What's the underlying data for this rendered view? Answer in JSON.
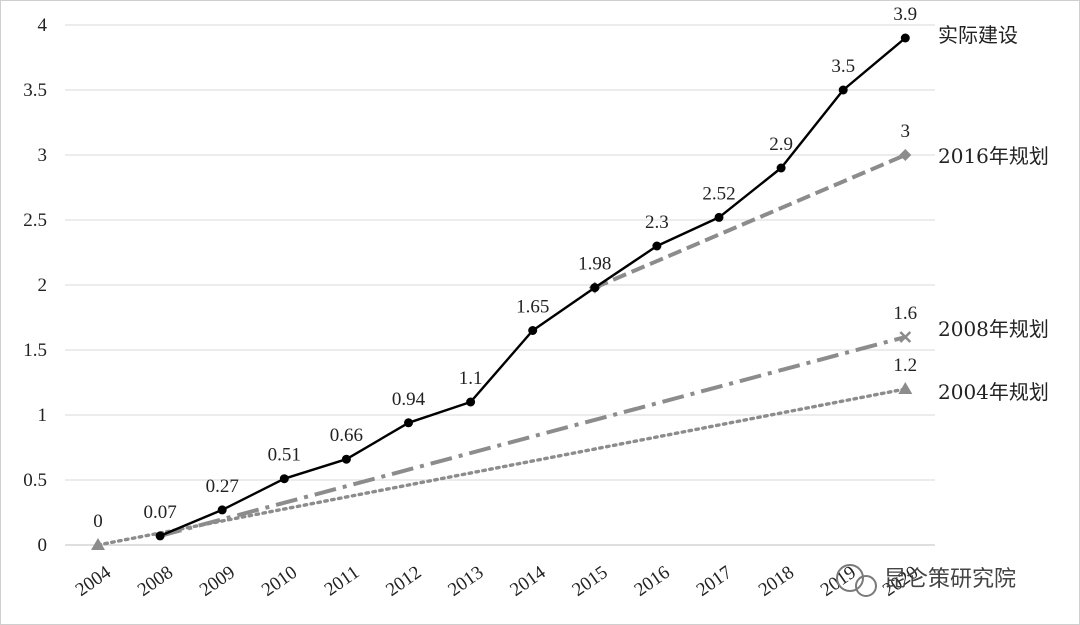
{
  "chart_data": {
    "type": "line",
    "categories": [
      "2004",
      "2008",
      "2009",
      "2010",
      "2011",
      "2012",
      "2013",
      "2014",
      "2015",
      "2016",
      "2017",
      "2018",
      "2019",
      "2020"
    ],
    "ylim": [
      0,
      4
    ],
    "yticks": [
      "0",
      "0.5",
      "1",
      "1.5",
      "2",
      "2.5",
      "3",
      "3.5",
      "4"
    ],
    "grid": true,
    "series": [
      {
        "name": "实际建设",
        "color": "#000000",
        "style": "solid",
        "marker": "circle",
        "points": [
          [
            1,
            0.07
          ],
          [
            2,
            0.27
          ],
          [
            3,
            0.51
          ],
          [
            4,
            0.66
          ],
          [
            5,
            0.94
          ],
          [
            6,
            1.1
          ],
          [
            7,
            1.65
          ],
          [
            8,
            1.98
          ],
          [
            9,
            2.3
          ],
          [
            10,
            2.52
          ],
          [
            11,
            2.9
          ],
          [
            12,
            3.5
          ],
          [
            13,
            3.9
          ]
        ],
        "labels": [
          "0.07",
          "0.27",
          "0.51",
          "0.66",
          "0.94",
          "1.1",
          "1.65",
          "1.98",
          "2.3",
          "2.52",
          "2.9",
          "3.5",
          "3.9"
        ]
      },
      {
        "name": "2016年规划",
        "color": "#8c8c8c",
        "style": "dashed",
        "marker": "diamond",
        "points": [
          [
            8,
            1.98
          ],
          [
            13,
            3.0
          ]
        ],
        "labels": [
          "",
          "3"
        ]
      },
      {
        "name": "2008年规划",
        "color": "#8c8c8c",
        "style": "dashdot",
        "marker": "x",
        "points": [
          [
            1,
            0.07
          ],
          [
            13,
            1.6
          ]
        ],
        "labels": [
          "",
          "1.6"
        ]
      },
      {
        "name": "2004年规划",
        "color": "#8c8c8c",
        "style": "dotted",
        "marker": "triangle",
        "points": [
          [
            0,
            0
          ],
          [
            13,
            1.2
          ]
        ],
        "labels": [
          "0",
          "1.2"
        ]
      }
    ]
  },
  "watermark": "昆仑策研究院"
}
